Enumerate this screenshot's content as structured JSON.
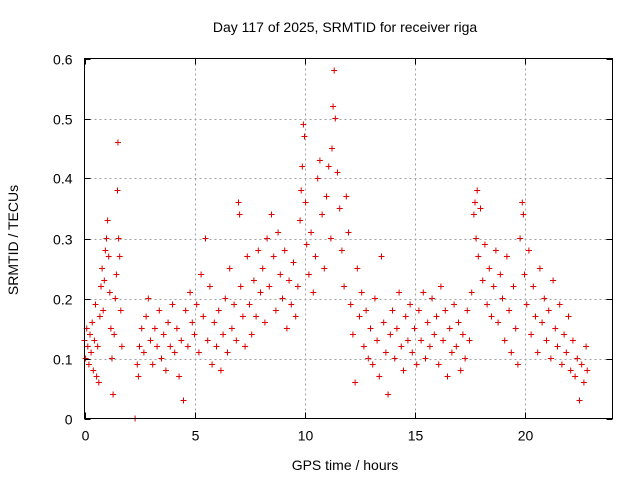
{
  "chart_data": {
    "type": "scatter",
    "title": "Day 117 of 2025, SRMTID for receiver riga",
    "xlabel": "GPS time / hours",
    "ylabel": "SRMTID / TECUs",
    "xlim": [
      0,
      24
    ],
    "ylim": [
      0,
      0.6
    ],
    "x_ticks": [
      0,
      5,
      10,
      15,
      20
    ],
    "x_tick_labels": [
      "0",
      "5",
      "10",
      "15",
      "20"
    ],
    "y_ticks": [
      0,
      0.1,
      0.2,
      0.3,
      0.4,
      0.5,
      0.6
    ],
    "y_tick_labels": [
      "0",
      "0.1",
      "0.2",
      "0.3",
      "0.4",
      "0.5",
      "0.6"
    ],
    "grid": true,
    "marker": "plus",
    "color": "#e00000",
    "series": [
      {
        "name": "SRMTID",
        "points": [
          [
            0.0,
            0.13
          ],
          [
            0.05,
            0.1
          ],
          [
            0.1,
            0.15
          ],
          [
            0.15,
            0.12
          ],
          [
            0.2,
            0.09
          ],
          [
            0.25,
            0.14
          ],
          [
            0.3,
            0.11
          ],
          [
            0.35,
            0.16
          ],
          [
            0.4,
            0.08
          ],
          [
            0.45,
            0.13
          ],
          [
            0.5,
            0.19
          ],
          [
            0.55,
            0.07
          ],
          [
            0.6,
            0.12
          ],
          [
            0.65,
            0.06
          ],
          [
            0.7,
            0.17
          ],
          [
            0.75,
            0.22
          ],
          [
            0.8,
            0.25
          ],
          [
            0.85,
            0.18
          ],
          [
            0.9,
            0.23
          ],
          [
            0.95,
            0.28
          ],
          [
            1.0,
            0.3
          ],
          [
            1.05,
            0.33
          ],
          [
            1.1,
            0.27
          ],
          [
            1.15,
            0.21
          ],
          [
            1.2,
            0.15
          ],
          [
            1.25,
            0.1
          ],
          [
            1.3,
            0.04
          ],
          [
            1.35,
            0.14
          ],
          [
            1.4,
            0.2
          ],
          [
            1.45,
            0.24
          ],
          [
            1.5,
            0.38
          ],
          [
            1.52,
            0.46
          ],
          [
            1.55,
            0.3
          ],
          [
            1.6,
            0.27
          ],
          [
            1.65,
            0.18
          ],
          [
            1.7,
            0.12
          ],
          [
            2.3,
            0.0
          ],
          [
            2.4,
            0.09
          ],
          [
            2.45,
            0.07
          ],
          [
            2.5,
            0.12
          ],
          [
            2.6,
            0.15
          ],
          [
            2.7,
            0.11
          ],
          [
            2.8,
            0.17
          ],
          [
            2.9,
            0.2
          ],
          [
            3.0,
            0.13
          ],
          [
            3.1,
            0.09
          ],
          [
            3.2,
            0.15
          ],
          [
            3.3,
            0.12
          ],
          [
            3.4,
            0.18
          ],
          [
            3.5,
            0.1
          ],
          [
            3.6,
            0.14
          ],
          [
            3.7,
            0.08
          ],
          [
            3.8,
            0.16
          ],
          [
            3.9,
            0.12
          ],
          [
            4.0,
            0.19
          ],
          [
            4.1,
            0.11
          ],
          [
            4.2,
            0.15
          ],
          [
            4.3,
            0.07
          ],
          [
            4.4,
            0.13
          ],
          [
            4.5,
            0.03
          ],
          [
            4.6,
            0.18
          ],
          [
            4.7,
            0.12
          ],
          [
            4.8,
            0.21
          ],
          [
            4.9,
            0.16
          ],
          [
            5.0,
            0.14
          ],
          [
            5.1,
            0.19
          ],
          [
            5.2,
            0.11
          ],
          [
            5.3,
            0.24
          ],
          [
            5.4,
            0.17
          ],
          [
            5.5,
            0.3
          ],
          [
            5.6,
            0.13
          ],
          [
            5.7,
            0.22
          ],
          [
            5.8,
            0.09
          ],
          [
            5.9,
            0.16
          ],
          [
            6.0,
            0.12
          ],
          [
            6.1,
            0.18
          ],
          [
            6.2,
            0.08
          ],
          [
            6.3,
            0.14
          ],
          [
            6.4,
            0.2
          ],
          [
            6.5,
            0.11
          ],
          [
            6.6,
            0.25
          ],
          [
            6.7,
            0.15
          ],
          [
            6.8,
            0.19
          ],
          [
            6.9,
            0.13
          ],
          [
            7.0,
            0.36
          ],
          [
            7.05,
            0.34
          ],
          [
            7.1,
            0.22
          ],
          [
            7.2,
            0.17
          ],
          [
            7.3,
            0.12
          ],
          [
            7.4,
            0.27
          ],
          [
            7.5,
            0.19
          ],
          [
            7.6,
            0.14
          ],
          [
            7.7,
            0.23
          ],
          [
            7.8,
            0.17
          ],
          [
            7.9,
            0.28
          ],
          [
            8.0,
            0.21
          ],
          [
            8.1,
            0.25
          ],
          [
            8.2,
            0.16
          ],
          [
            8.3,
            0.3
          ],
          [
            8.4,
            0.22
          ],
          [
            8.5,
            0.34
          ],
          [
            8.6,
            0.27
          ],
          [
            8.7,
            0.18
          ],
          [
            8.8,
            0.31
          ],
          [
            8.9,
            0.24
          ],
          [
            9.0,
            0.2
          ],
          [
            9.1,
            0.28
          ],
          [
            9.2,
            0.15
          ],
          [
            9.3,
            0.23
          ],
          [
            9.4,
            0.19
          ],
          [
            9.5,
            0.26
          ],
          [
            9.6,
            0.17
          ],
          [
            9.7,
            0.22
          ],
          [
            9.8,
            0.33
          ],
          [
            9.85,
            0.38
          ],
          [
            9.9,
            0.42
          ],
          [
            9.95,
            0.49
          ],
          [
            10.0,
            0.47
          ],
          [
            10.05,
            0.36
          ],
          [
            10.1,
            0.29
          ],
          [
            10.2,
            0.24
          ],
          [
            10.3,
            0.31
          ],
          [
            10.4,
            0.21
          ],
          [
            10.5,
            0.27
          ],
          [
            10.6,
            0.4
          ],
          [
            10.7,
            0.43
          ],
          [
            10.8,
            0.34
          ],
          [
            10.9,
            0.25
          ],
          [
            11.0,
            0.37
          ],
          [
            11.1,
            0.42
          ],
          [
            11.2,
            0.3
          ],
          [
            11.25,
            0.45
          ],
          [
            11.3,
            0.52
          ],
          [
            11.35,
            0.58
          ],
          [
            11.4,
            0.5
          ],
          [
            11.5,
            0.41
          ],
          [
            11.6,
            0.35
          ],
          [
            11.7,
            0.28
          ],
          [
            11.8,
            0.22
          ],
          [
            11.9,
            0.37
          ],
          [
            12.0,
            0.31
          ],
          [
            12.1,
            0.19
          ],
          [
            12.2,
            0.14
          ],
          [
            12.3,
            0.06
          ],
          [
            12.4,
            0.25
          ],
          [
            12.5,
            0.17
          ],
          [
            12.6,
            0.21
          ],
          [
            12.7,
            0.12
          ],
          [
            12.8,
            0.18
          ],
          [
            12.9,
            0.1
          ],
          [
            13.0,
            0.15
          ],
          [
            13.1,
            0.09
          ],
          [
            13.2,
            0.2
          ],
          [
            13.3,
            0.13
          ],
          [
            13.4,
            0.07
          ],
          [
            13.5,
            0.27
          ],
          [
            13.6,
            0.16
          ],
          [
            13.7,
            0.11
          ],
          [
            13.8,
            0.04
          ],
          [
            13.9,
            0.14
          ],
          [
            14.0,
            0.18
          ],
          [
            14.1,
            0.1
          ],
          [
            14.2,
            0.15
          ],
          [
            14.3,
            0.21
          ],
          [
            14.4,
            0.12
          ],
          [
            14.5,
            0.08
          ],
          [
            14.6,
            0.17
          ],
          [
            14.7,
            0.13
          ],
          [
            14.8,
            0.19
          ],
          [
            14.9,
            0.11
          ],
          [
            15.0,
            0.15
          ],
          [
            15.1,
            0.09
          ],
          [
            15.2,
            0.18
          ],
          [
            15.3,
            0.13
          ],
          [
            15.4,
            0.21
          ],
          [
            15.5,
            0.1
          ],
          [
            15.6,
            0.16
          ],
          [
            15.7,
            0.12
          ],
          [
            15.8,
            0.2
          ],
          [
            15.9,
            0.14
          ],
          [
            16.0,
            0.17
          ],
          [
            16.1,
            0.09
          ],
          [
            16.2,
            0.22
          ],
          [
            16.3,
            0.13
          ],
          [
            16.4,
            0.18
          ],
          [
            16.5,
            0.07
          ],
          [
            16.6,
            0.15
          ],
          [
            16.7,
            0.11
          ],
          [
            16.8,
            0.19
          ],
          [
            16.9,
            0.12
          ],
          [
            17.0,
            0.16
          ],
          [
            17.1,
            0.08
          ],
          [
            17.2,
            0.14
          ],
          [
            17.3,
            0.1
          ],
          [
            17.4,
            0.18
          ],
          [
            17.5,
            0.13
          ],
          [
            17.6,
            0.21
          ],
          [
            17.7,
            0.34
          ],
          [
            17.75,
            0.36
          ],
          [
            17.8,
            0.3
          ],
          [
            17.85,
            0.38
          ],
          [
            17.9,
            0.27
          ],
          [
            18.0,
            0.35
          ],
          [
            18.1,
            0.23
          ],
          [
            18.2,
            0.29
          ],
          [
            18.3,
            0.19
          ],
          [
            18.4,
            0.25
          ],
          [
            18.5,
            0.17
          ],
          [
            18.6,
            0.22
          ],
          [
            18.7,
            0.28
          ],
          [
            18.8,
            0.16
          ],
          [
            18.9,
            0.24
          ],
          [
            19.0,
            0.2
          ],
          [
            19.1,
            0.13
          ],
          [
            19.2,
            0.27
          ],
          [
            19.3,
            0.18
          ],
          [
            19.4,
            0.11
          ],
          [
            19.5,
            0.22
          ],
          [
            19.6,
            0.15
          ],
          [
            19.7,
            0.09
          ],
          [
            19.8,
            0.3
          ],
          [
            19.9,
            0.36
          ],
          [
            19.95,
            0.34
          ],
          [
            20.0,
            0.24
          ],
          [
            20.1,
            0.19
          ],
          [
            20.2,
            0.28
          ],
          [
            20.3,
            0.14
          ],
          [
            20.4,
            0.22
          ],
          [
            20.5,
            0.17
          ],
          [
            20.6,
            0.11
          ],
          [
            20.7,
            0.25
          ],
          [
            20.8,
            0.16
          ],
          [
            20.9,
            0.2
          ],
          [
            21.0,
            0.13
          ],
          [
            21.1,
            0.18
          ],
          [
            21.2,
            0.1
          ],
          [
            21.3,
            0.23
          ],
          [
            21.4,
            0.15
          ],
          [
            21.5,
            0.12
          ],
          [
            21.6,
            0.19
          ],
          [
            21.7,
            0.09
          ],
          [
            21.8,
            0.14
          ],
          [
            21.9,
            0.11
          ],
          [
            22.0,
            0.17
          ],
          [
            22.1,
            0.08
          ],
          [
            22.2,
            0.13
          ],
          [
            22.3,
            0.07
          ],
          [
            22.4,
            0.1
          ],
          [
            22.5,
            0.03
          ],
          [
            22.6,
            0.09
          ],
          [
            22.7,
            0.06
          ],
          [
            22.8,
            0.12
          ],
          [
            22.85,
            0.08
          ]
        ]
      }
    ]
  }
}
